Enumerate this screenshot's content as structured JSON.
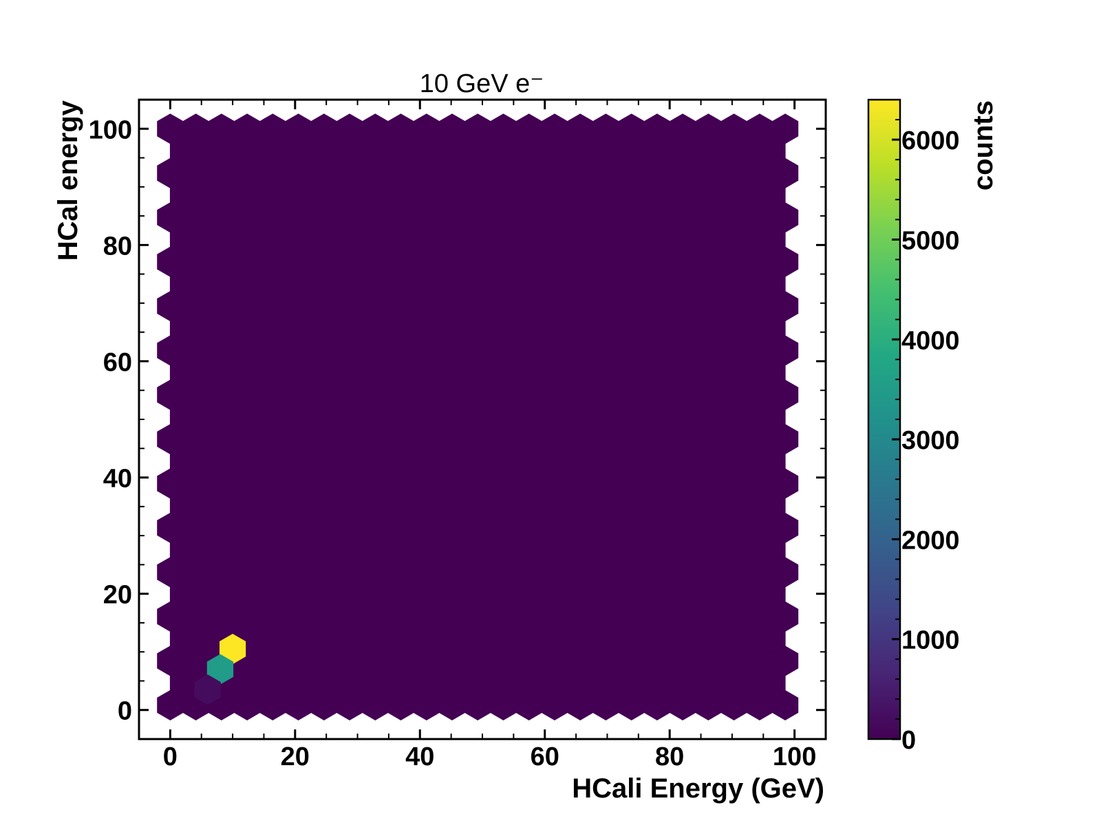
{
  "chart_data": {
    "type": "heatmap",
    "subtype": "hexbin",
    "title": "10 GeV e⁻",
    "xlabel": "HCali Energy (GeV)",
    "ylabel": "HCal energy",
    "xlim": [
      -5,
      105
    ],
    "ylim": [
      -5,
      105
    ],
    "xticks": [
      0,
      20,
      40,
      60,
      80,
      100
    ],
    "yticks": [
      0,
      20,
      40,
      60,
      80,
      100
    ],
    "grid": false,
    "colormap": "viridis",
    "colorbar": {
      "label": "counts",
      "range": [
        0,
        6400
      ],
      "ticks": [
        0,
        1000,
        2000,
        3000,
        4000,
        5000,
        6000
      ]
    },
    "hexbin_extent": {
      "x": [
        0,
        100
      ],
      "y": [
        0,
        100
      ]
    },
    "hex_cells": [
      {
        "x": 10,
        "y": 10.5,
        "count": 6400
      },
      {
        "x": 8,
        "y": 7,
        "count": 3500
      },
      {
        "x": 6,
        "y": 3.5,
        "count": 200
      }
    ],
    "background_count": 0
  },
  "colors": {
    "background_hex": "#440154",
    "low": "#440154",
    "high": "#fde725"
  }
}
